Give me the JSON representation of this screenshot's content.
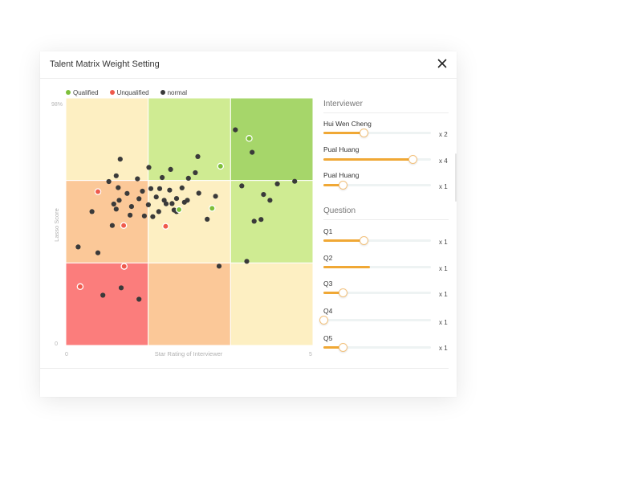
{
  "dialog": {
    "title": "Talent Matrix Weight Setting",
    "close_label": "✕"
  },
  "legend": [
    {
      "label": "Qualified",
      "color": "#7dbf3a"
    },
    {
      "label": "Unqualified",
      "color": "#ef5a4c"
    },
    {
      "label": "normal",
      "color": "#3a3a3a"
    }
  ],
  "chart_data": {
    "type": "scatter",
    "xlabel": "Star Rating of Interviewer",
    "ylabel": "Lasso Score",
    "xlim": [
      0,
      5
    ],
    "ylim": [
      0,
      98
    ],
    "x_tick_labels": [
      "0",
      "5"
    ],
    "y_tick_labels": [
      "0",
      "98%"
    ],
    "grid": {
      "rows": 3,
      "cols": 3,
      "colors": [
        [
          "#fdefc2",
          "#cfeb92",
          "#a6d66a"
        ],
        [
          "#fbc898",
          "#fdefc2",
          "#cfeb92"
        ],
        [
          "#fb7d7c",
          "#fbc898",
          "#fdefc2"
        ]
      ]
    },
    "series": [
      {
        "name": "normal",
        "color": "#3a3a3a",
        "points": [
          [
            3.43,
            85.4
          ],
          [
            3.77,
            76.5
          ],
          [
            4.63,
            65.0
          ],
          [
            4.28,
            64.0
          ],
          [
            4.13,
            57.5
          ],
          [
            3.56,
            63.2
          ],
          [
            4.0,
            59.8
          ],
          [
            3.81,
            49.2
          ],
          [
            3.95,
            49.9
          ],
          [
            1.1,
            73.8
          ],
          [
            1.68,
            70.5
          ],
          [
            2.12,
            69.7
          ],
          [
            1.95,
            66.5
          ],
          [
            1.45,
            66.0
          ],
          [
            0.87,
            64.9
          ],
          [
            1.02,
            67.2
          ],
          [
            1.06,
            62.5
          ],
          [
            1.55,
            61.1
          ],
          [
            1.72,
            62.1
          ],
          [
            1.9,
            62.1
          ],
          [
            2.1,
            61.5
          ],
          [
            2.35,
            62.4
          ],
          [
            2.48,
            66.2
          ],
          [
            2.69,
            60.3
          ],
          [
            3.03,
            59.1
          ],
          [
            1.24,
            60.2
          ],
          [
            1.08,
            57.5
          ],
          [
            1.48,
            58.1
          ],
          [
            1.83,
            58.8
          ],
          [
            1.99,
            57.5
          ],
          [
            2.24,
            58.2
          ],
          [
            2.46,
            57.5
          ],
          [
            0.97,
            56.0
          ],
          [
            1.33,
            55.0
          ],
          [
            1.67,
            55.7
          ],
          [
            2.15,
            56.2
          ],
          [
            2.4,
            56.7
          ],
          [
            0.53,
            53.0
          ],
          [
            1.02,
            54.0
          ],
          [
            1.88,
            53.0
          ],
          [
            2.24,
            53.0
          ],
          [
            1.3,
            51.6
          ],
          [
            2.86,
            50.0
          ],
          [
            1.59,
            51.3
          ],
          [
            0.94,
            47.5
          ],
          [
            2.67,
            74.8
          ],
          [
            0.25,
            39.0
          ],
          [
            0.65,
            36.7
          ],
          [
            1.76,
            51.0
          ],
          [
            2.19,
            53.6
          ],
          [
            3.66,
            33.3
          ],
          [
            3.1,
            31.4
          ],
          [
            0.75,
            19.9
          ],
          [
            1.12,
            22.8
          ],
          [
            1.48,
            18.3
          ],
          [
            2.62,
            68.4
          ],
          [
            2.03,
            56.1
          ]
        ]
      },
      {
        "name": "Qualified",
        "color": "#7dbf3a",
        "points": [
          [
            3.71,
            82.0
          ],
          [
            3.13,
            71.0
          ],
          [
            2.29,
            53.8
          ],
          [
            2.96,
            54.3
          ]
        ]
      },
      {
        "name": "Unqualified",
        "color": "#ef5a4c",
        "points": [
          [
            0.65,
            60.9
          ],
          [
            1.17,
            47.5
          ],
          [
            0.29,
            23.3
          ],
          [
            2.02,
            47.2
          ],
          [
            1.18,
            31.3
          ]
        ]
      }
    ]
  },
  "interviewer": {
    "title": "Interviewer",
    "sliders": [
      {
        "label": "Hui Wen Cheng",
        "multiplier": "x 2",
        "level": 0.37
      },
      {
        "label": "Pual Huang",
        "multiplier": "x 4",
        "level": 0.83
      },
      {
        "label": "Pual Huang",
        "multiplier": "x 1",
        "level": 0.18
      }
    ]
  },
  "question": {
    "title": "Question",
    "sliders": [
      {
        "label": "Q1",
        "multiplier": "x 1",
        "level": 0.37
      },
      {
        "label": "Q2",
        "multiplier": "x 1",
        "level": 0.43
      },
      {
        "label": "Q3",
        "multiplier": "x 1",
        "level": 0.18
      },
      {
        "label": "Q4",
        "multiplier": "x 1",
        "level": 0.0
      },
      {
        "label": "Q5",
        "multiplier": "x 1",
        "level": 0.18
      }
    ]
  }
}
